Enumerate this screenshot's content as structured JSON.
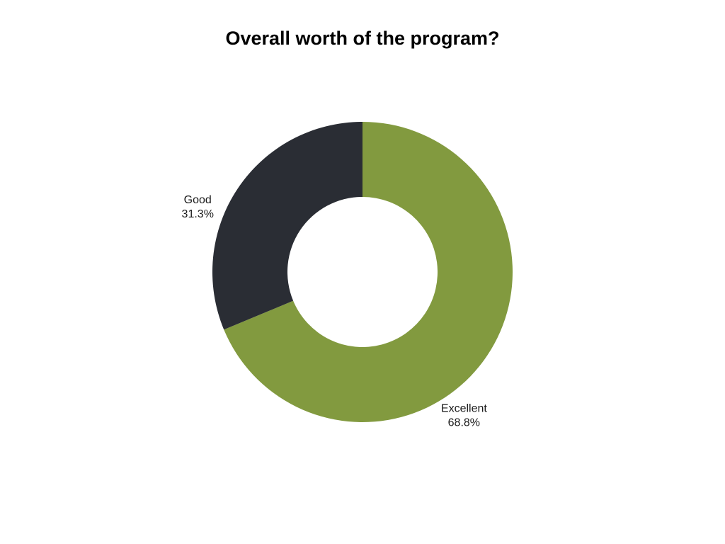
{
  "chart_data": {
    "type": "pie",
    "title": "Overall worth of the program?",
    "donut": true,
    "slices": [
      {
        "label": "Excellent",
        "value": 68.8,
        "value_label": "68.8%",
        "color": "#829a3f"
      },
      {
        "label": "Good",
        "value": 31.3,
        "value_label": "31.3%",
        "color": "#2a2d34"
      }
    ]
  }
}
